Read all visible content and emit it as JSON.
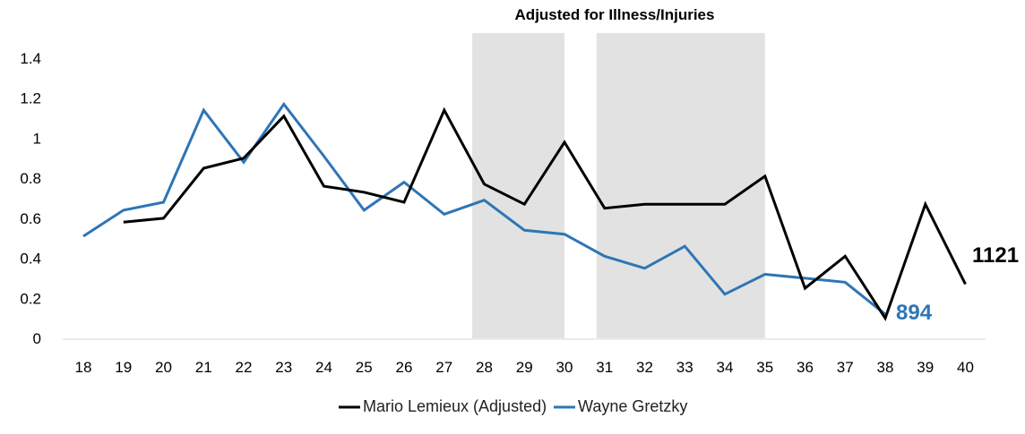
{
  "chart_data": {
    "type": "line",
    "title": "Adjusted for Illness/Injuries",
    "xlabel": "",
    "ylabel": "",
    "x": [
      18,
      19,
      20,
      21,
      22,
      23,
      24,
      25,
      26,
      27,
      28,
      29,
      30,
      31,
      32,
      33,
      34,
      35,
      36,
      37,
      38,
      39,
      40
    ],
    "ylim": [
      0,
      1.4
    ],
    "yticks": [
      0,
      0.2,
      0.4,
      0.6,
      0.8,
      1,
      1.2,
      1.4
    ],
    "ytick_labels": [
      "0",
      "0.2",
      "0.4",
      "0.6",
      "0.8",
      "1",
      "1.2",
      "1.4"
    ],
    "grid": false,
    "legend_position": "bottom",
    "shaded_ranges": [
      [
        27.7,
        30
      ],
      [
        30.8,
        35
      ]
    ],
    "series": [
      {
        "name": "Mario Lemieux (Adjusted)",
        "color": "#000000",
        "values": [
          null,
          0.58,
          0.6,
          0.85,
          0.9,
          1.11,
          0.76,
          0.73,
          0.68,
          1.14,
          0.77,
          0.67,
          0.98,
          0.65,
          0.67,
          0.67,
          0.67,
          0.81,
          0.25,
          0.41,
          0.1,
          0.67,
          0.27
        ],
        "end_label": "1121"
      },
      {
        "name": "Wayne Gretzky",
        "color": "#2e75b6",
        "values": [
          0.51,
          0.64,
          0.68,
          1.14,
          0.88,
          1.17,
          0.91,
          0.64,
          0.78,
          0.62,
          0.69,
          0.54,
          0.52,
          0.41,
          0.35,
          0.46,
          0.22,
          0.32,
          0.3,
          0.28,
          0.12,
          null,
          null
        ],
        "end_label": "894"
      }
    ]
  }
}
